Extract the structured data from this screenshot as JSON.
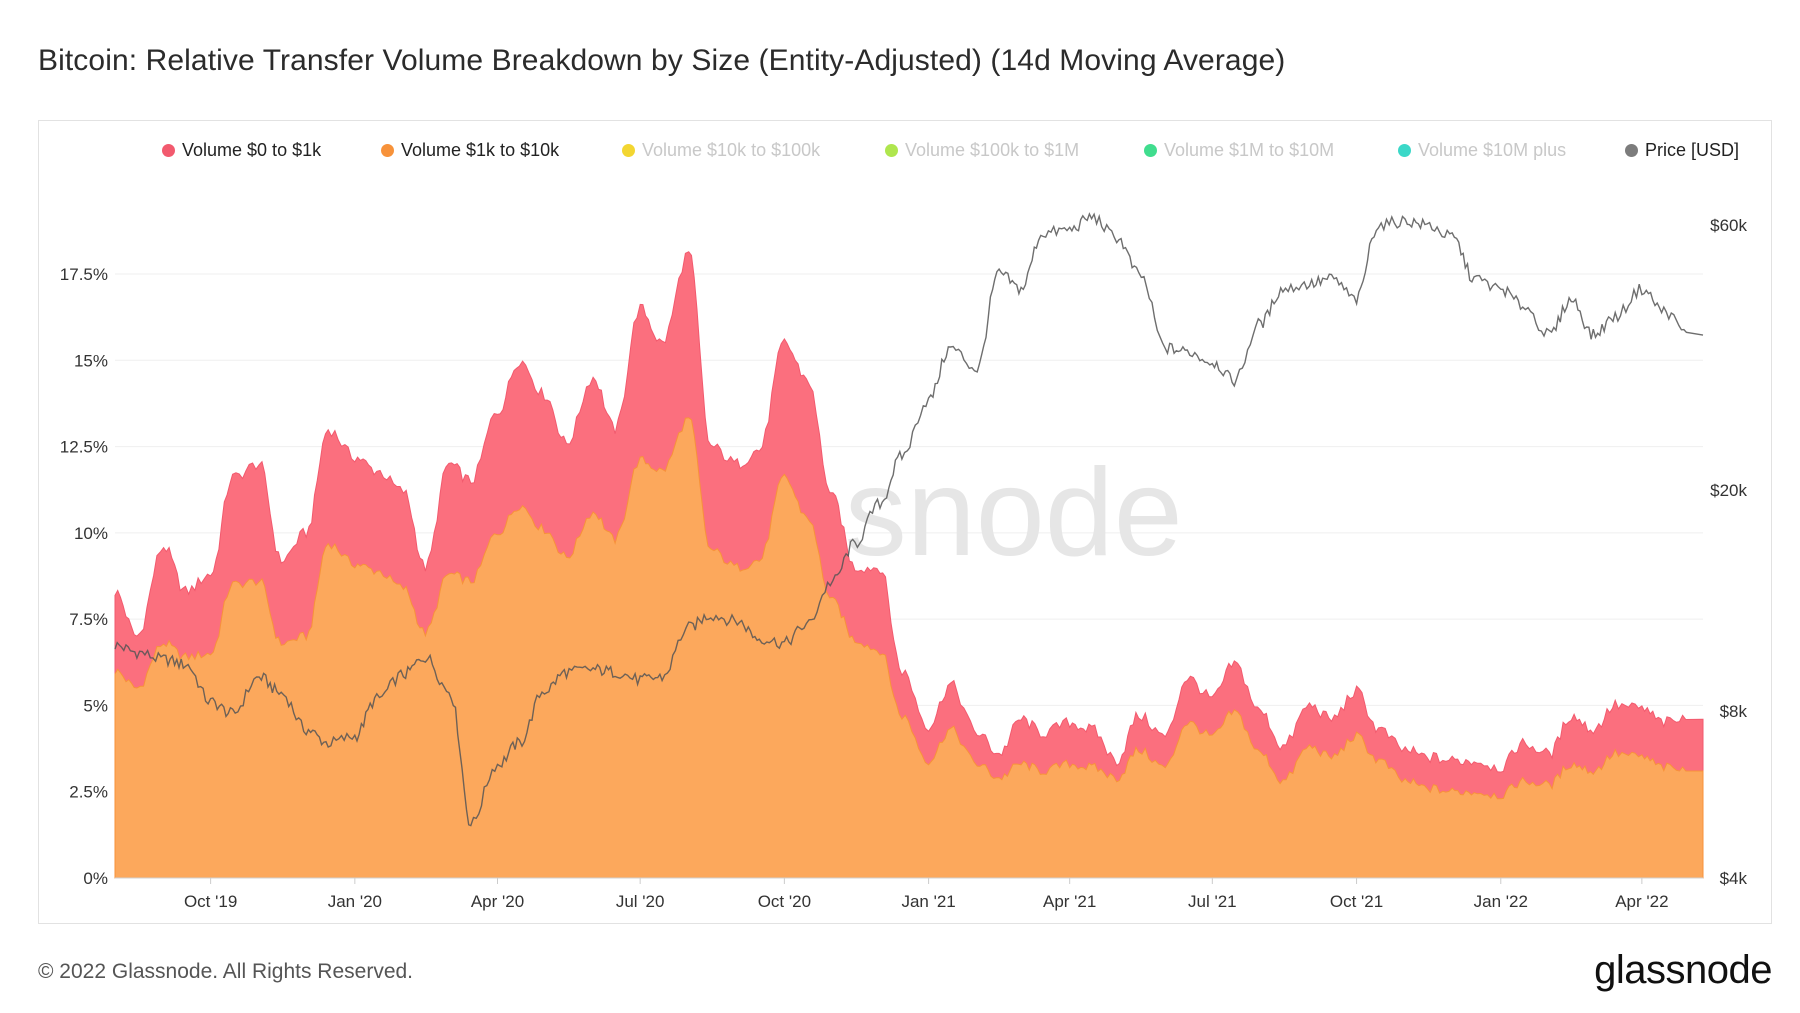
{
  "title": "Bitcoin: Relative Transfer Volume Breakdown by Size (Entity-Adjusted) (14d Moving Average)",
  "watermark": "glassnode",
  "footer": {
    "copyright": "© 2022 Glassnode. All Rights Reserved.",
    "logo": "glassnode"
  },
  "legend": [
    {
      "label": "Volume $0 to $1k",
      "color": "#f25a6e",
      "active": true
    },
    {
      "label": "Volume $1k to $10k",
      "color": "#f7923a",
      "active": true
    },
    {
      "label": "Volume $10k to $100k",
      "color": "#f2d21b",
      "active": false
    },
    {
      "label": "Volume $100k to $1M",
      "color": "#a6e33b",
      "active": false
    },
    {
      "label": "Volume $1M to $10M",
      "color": "#2bd982",
      "active": false
    },
    {
      "label": "Volume $10M plus",
      "color": "#26d4c2",
      "active": false
    },
    {
      "label": "Price [USD]",
      "color": "#7c7c7c",
      "active": true
    }
  ],
  "chart_data": {
    "type": "area",
    "x": [
      "2019-08-01",
      "2019-08-15",
      "2019-09-01",
      "2019-09-15",
      "2019-10-01",
      "2019-10-15",
      "2019-11-01",
      "2019-11-15",
      "2019-12-01",
      "2019-12-15",
      "2020-01-01",
      "2020-01-15",
      "2020-02-01",
      "2020-02-15",
      "2020-03-01",
      "2020-03-15",
      "2020-04-01",
      "2020-04-15",
      "2020-05-01",
      "2020-05-15",
      "2020-06-01",
      "2020-06-15",
      "2020-07-01",
      "2020-07-15",
      "2020-08-01",
      "2020-08-15",
      "2020-09-01",
      "2020-09-15",
      "2020-10-01",
      "2020-10-15",
      "2020-11-01",
      "2020-11-15",
      "2020-12-01",
      "2020-12-15",
      "2021-01-01",
      "2021-01-15",
      "2021-02-01",
      "2021-02-15",
      "2021-03-01",
      "2021-03-15",
      "2021-04-01",
      "2021-04-15",
      "2021-05-01",
      "2021-05-15",
      "2021-06-01",
      "2021-06-15",
      "2021-07-01",
      "2021-07-15",
      "2021-08-01",
      "2021-08-15",
      "2021-09-01",
      "2021-09-15",
      "2021-10-01",
      "2021-10-15",
      "2021-11-01",
      "2021-11-15",
      "2021-12-01",
      "2021-12-15",
      "2022-01-01",
      "2022-01-15",
      "2022-02-01",
      "2022-02-15",
      "2022-03-01",
      "2022-03-15",
      "2022-04-01",
      "2022-04-15",
      "2022-05-01"
    ],
    "series": [
      {
        "name": "Volume $0 to $1k",
        "stacked_total": true,
        "values": [
          8.3,
          7.0,
          9.6,
          8.3,
          8.8,
          11.6,
          12.0,
          9.2,
          10.0,
          13.0,
          12.2,
          11.8,
          11.2,
          9.0,
          12.0,
          11.5,
          13.5,
          15.0,
          14.0,
          12.6,
          14.5,
          13.0,
          16.5,
          15.5,
          18.1,
          12.5,
          12.0,
          12.4,
          15.5,
          14.5,
          11.0,
          9.0,
          9.0,
          6.0,
          4.4,
          5.6,
          4.2,
          3.6,
          4.6,
          4.2,
          4.5,
          4.3,
          3.4,
          4.7,
          4.1,
          5.8,
          5.2,
          6.2,
          4.8,
          3.8,
          5.0,
          4.6,
          5.4,
          4.3,
          3.7,
          3.5,
          3.4,
          3.4,
          3.2,
          3.9,
          3.6,
          4.7,
          4.3,
          5.0,
          4.9,
          4.5,
          4.6
        ]
      },
      {
        "name": "Volume $1k to $10k",
        "values": [
          6.0,
          5.5,
          6.8,
          6.4,
          6.5,
          8.5,
          8.6,
          6.8,
          7.0,
          9.7,
          9.1,
          8.9,
          8.4,
          7.1,
          8.8,
          8.6,
          10.0,
          10.8,
          10.1,
          9.3,
          10.6,
          9.8,
          12.1,
          11.8,
          13.3,
          9.5,
          9.0,
          9.2,
          11.6,
          10.5,
          8.0,
          6.9,
          6.6,
          4.7,
          3.4,
          4.3,
          3.3,
          2.9,
          3.3,
          3.1,
          3.3,
          3.2,
          2.9,
          3.7,
          3.2,
          4.5,
          4.1,
          4.8,
          3.6,
          2.8,
          3.8,
          3.5,
          4.1,
          3.4,
          2.8,
          2.6,
          2.5,
          2.5,
          2.4,
          2.8,
          2.7,
          3.3,
          3.1,
          3.6,
          3.5,
          3.2,
          3.1
        ]
      },
      {
        "name": "Price [USD]",
        "axis": "right",
        "scale": "log",
        "values": [
          10500,
          10200,
          9900,
          9700,
          8300,
          7900,
          9200,
          8600,
          7400,
          7000,
          7200,
          8400,
          9300,
          10000,
          8700,
          5000,
          6400,
          7000,
          8700,
          9400,
          9500,
          9400,
          9100,
          9200,
          11300,
          11900,
          11600,
          10800,
          10600,
          11400,
          13700,
          16000,
          18900,
          23000,
          29000,
          36000,
          33000,
          49000,
          46000,
          58000,
          58800,
          62000,
          57000,
          49000,
          36000,
          35500,
          34000,
          31500,
          40000,
          46000,
          47000,
          48000,
          44000,
          60000,
          61000,
          60000,
          57000,
          48000,
          46000,
          43000,
          38000,
          44000,
          38000,
          41000,
          46000,
          42000,
          38000
        ]
      }
    ],
    "ylim": [
      0,
      19.5
    ],
    "yticks": [
      "0%",
      "2.5%",
      "5%",
      "7.5%",
      "10%",
      "12.5%",
      "15%",
      "17.5%"
    ],
    "y2ticks": [
      "$4k",
      "$8k",
      "$20k",
      "$60k"
    ],
    "xticks": [
      "Oct '19",
      "Jan '20",
      "Apr '20",
      "Jul '20",
      "Oct '20",
      "Jan '21",
      "Apr '21",
      "Jul '21",
      "Oct '21",
      "Jan '22",
      "Apr '22"
    ],
    "grid": true,
    "legend_position": "top"
  }
}
